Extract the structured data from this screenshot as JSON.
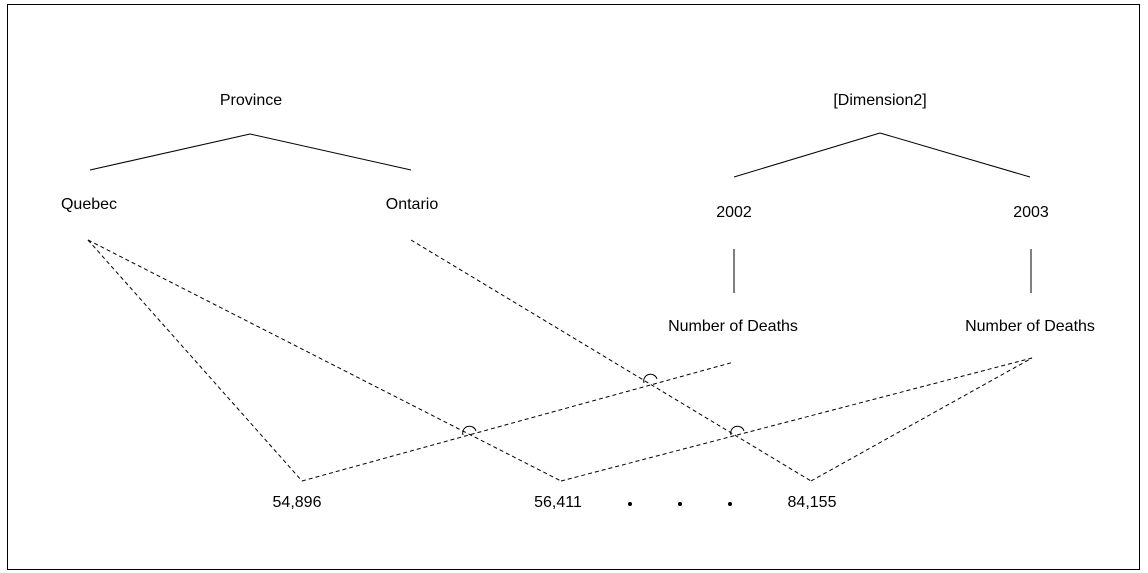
{
  "hierarchy_left": {
    "root": "Province",
    "children": [
      "Quebec",
      "Ontario"
    ]
  },
  "hierarchy_right": {
    "root": "[Dimension2]",
    "children": [
      "2002",
      "2003"
    ],
    "measures": [
      "Number of Deaths",
      "Number of Deaths"
    ]
  },
  "values": [
    "54,896",
    "56,411",
    "84,155"
  ],
  "ellipsis": "• • •"
}
